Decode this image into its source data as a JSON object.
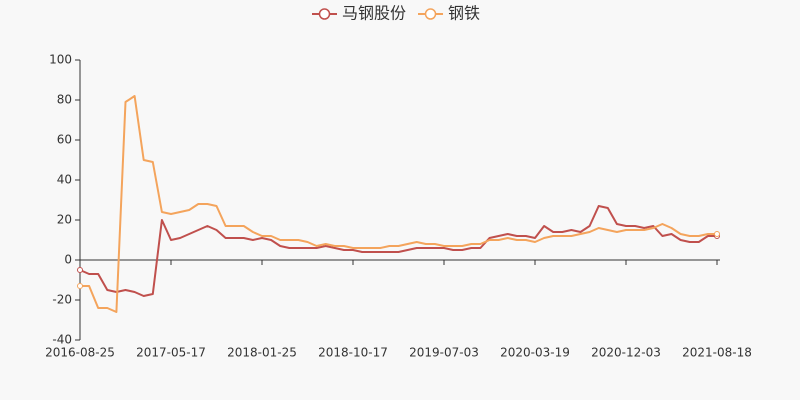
{
  "chart_data": {
    "type": "line",
    "categories": [
      "2016-08-25",
      null,
      null,
      null,
      null,
      null,
      null,
      null,
      null,
      null,
      "2017-05-17",
      null,
      null,
      null,
      null,
      null,
      null,
      null,
      null,
      null,
      "2018-01-25",
      null,
      null,
      null,
      null,
      null,
      null,
      null,
      null,
      null,
      "2018-10-17",
      null,
      null,
      null,
      null,
      null,
      null,
      null,
      null,
      null,
      "2019-07-03",
      null,
      null,
      null,
      null,
      null,
      null,
      null,
      null,
      null,
      "2020-03-19",
      null,
      null,
      null,
      null,
      null,
      null,
      null,
      null,
      null,
      "2020-12-03",
      null,
      null,
      null,
      null,
      null,
      null,
      null,
      null,
      null,
      "2021-08-18"
    ],
    "series": [
      {
        "name": "马钢股份",
        "color": "#c0504d",
        "values": [
          -5,
          -7,
          -7,
          -15,
          -16,
          -15,
          -16,
          -18,
          -17,
          20,
          10,
          11,
          13,
          15,
          17,
          15,
          11,
          11,
          11,
          10,
          11,
          10,
          7,
          6,
          6,
          6,
          6,
          7,
          6,
          5,
          5,
          4,
          4,
          4,
          4,
          4,
          5,
          6,
          6,
          6,
          6,
          5,
          5,
          6,
          6,
          11,
          12,
          13,
          12,
          12,
          11,
          17,
          14,
          14,
          15,
          14,
          17,
          27,
          26,
          18,
          17,
          17,
          16,
          17,
          12,
          13,
          10,
          9,
          9,
          12,
          12
        ]
      },
      {
        "name": "钢铁",
        "color": "#f4a45c",
        "values": [
          -13,
          -13,
          -24,
          -24,
          -26,
          79,
          82,
          50,
          49,
          24,
          23,
          24,
          25,
          28,
          28,
          27,
          17,
          17,
          17,
          14,
          12,
          12,
          10,
          10,
          10,
          9,
          7,
          8,
          7,
          7,
          6,
          6,
          6,
          6,
          7,
          7,
          8,
          9,
          8,
          8,
          7,
          7,
          7,
          8,
          8,
          10,
          10,
          11,
          10,
          10,
          9,
          11,
          12,
          12,
          12,
          13,
          14,
          16,
          15,
          14,
          15,
          15,
          15,
          16,
          18,
          16,
          13,
          12,
          12,
          13,
          13
        ]
      }
    ],
    "ylim": [
      -40,
      100
    ],
    "yticks": [
      -40,
      -20,
      0,
      20,
      40,
      60,
      80,
      100
    ]
  }
}
